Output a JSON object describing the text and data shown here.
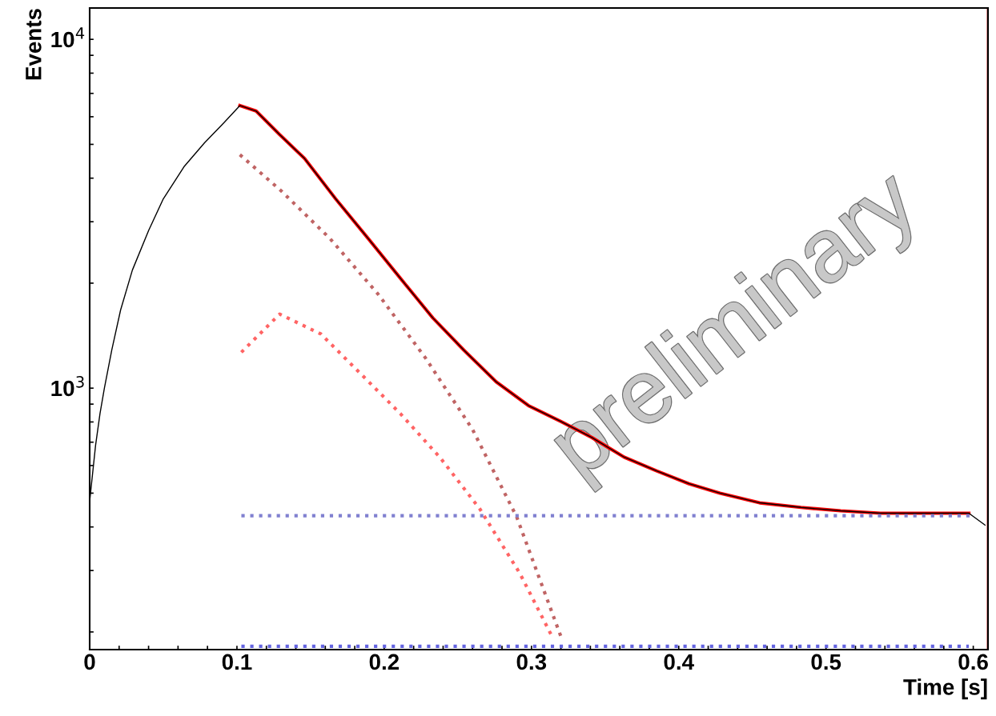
{
  "chart_data": {
    "type": "line",
    "xlabel": "Time [s]",
    "ylabel": "Events",
    "log": "y",
    "xlim": [
      0,
      0.61
    ],
    "ylim": [
      178,
      12300
    ],
    "xticks": [
      0,
      {
        "value": 0.02,
        "label": null
      },
      {
        "value": 0.04,
        "label": null
      },
      {
        "value": 0.06,
        "label": null
      },
      {
        "value": 0.08,
        "label": null
      },
      0.1,
      {
        "value": 0.12,
        "label": null
      },
      {
        "value": 0.14,
        "label": null
      },
      {
        "value": 0.16,
        "label": null
      },
      {
        "value": 0.18,
        "label": null
      },
      0.2,
      {
        "value": 0.22,
        "label": null
      },
      {
        "value": 0.24,
        "label": null
      },
      {
        "value": 0.26,
        "label": null
      },
      {
        "value": 0.28,
        "label": null
      },
      0.3,
      {
        "value": 0.32,
        "label": null
      },
      {
        "value": 0.34,
        "label": null
      },
      {
        "value": 0.36,
        "label": null
      },
      {
        "value": 0.38,
        "label": null
      },
      0.4,
      {
        "value": 0.42,
        "label": null
      },
      {
        "value": 0.44,
        "label": null
      },
      {
        "value": 0.46,
        "label": null
      },
      {
        "value": 0.48,
        "label": null
      },
      0.5,
      {
        "value": 0.52,
        "label": null
      },
      {
        "value": 0.54,
        "label": null
      },
      {
        "value": 0.56,
        "label": null
      },
      {
        "value": 0.58,
        "label": null
      },
      0.6
    ],
    "yticks": [
      {
        "value": 200,
        "label": null
      },
      {
        "value": 300,
        "label": null
      },
      {
        "value": 400,
        "label": null
      },
      {
        "value": 500,
        "label": null
      },
      {
        "value": 600,
        "label": null
      },
      {
        "value": 700,
        "label": null
      },
      {
        "value": 800,
        "label": null
      },
      {
        "value": 900,
        "label": null
      },
      {
        "value": 1000,
        "label": "10$^{3}$"
      },
      {
        "value": 2000,
        "label": null
      },
      {
        "value": 3000,
        "label": null
      },
      {
        "value": 4000,
        "label": null
      },
      {
        "value": 5000,
        "label": null
      },
      {
        "value": 6000,
        "label": null
      },
      {
        "value": 7000,
        "label": null
      },
      {
        "value": 8000,
        "label": null
      },
      {
        "value": 9000,
        "label": null
      },
      {
        "value": 10000,
        "label": "10$^{4}$"
      }
    ],
    "grid": false,
    "legend": false,
    "series": [
      {
        "color": "#000000",
        "line_style": "solid",
        "x": [
          0,
          0.004,
          0.007,
          0.01,
          0.015,
          0.021,
          0.029,
          0.04,
          0.05,
          0.064,
          0.078,
          0.091,
          0.102,
          0.113,
          0.129,
          0.146,
          0.167,
          0.189,
          0.211,
          0.233,
          0.254,
          0.276,
          0.298,
          0.32,
          0.341,
          0.363,
          0.385,
          0.407,
          0.428,
          0.455,
          0.483,
          0.51,
          0.537,
          0.564,
          0.597,
          0.608
        ],
        "values": [
          474,
          685,
          845,
          1000,
          1286,
          1675,
          2180,
          2830,
          3490,
          4310,
          5050,
          5760,
          6460,
          6230,
          5330,
          4550,
          3490,
          2690,
          2065,
          1590,
          1286,
          1043,
          891,
          802,
          722,
          634,
          579,
          532,
          500,
          469,
          455,
          445,
          438,
          438,
          438,
          405
        ]
      },
      {
        "color": "#ff0000",
        "line_style": "solid",
        "x": [
          0.102,
          0.113,
          0.129,
          0.146,
          0.167,
          0.189,
          0.211,
          0.233,
          0.254,
          0.276,
          0.298,
          0.32,
          0.341,
          0.363,
          0.385,
          0.407,
          0.428,
          0.455,
          0.483,
          0.51,
          0.537,
          0.564,
          0.597
        ],
        "values": [
          6460,
          6230,
          5330,
          4550,
          3490,
          2690,
          2065,
          1590,
          1286,
          1043,
          891,
          802,
          722,
          634,
          579,
          532,
          500,
          469,
          455,
          445,
          438,
          438,
          438
        ]
      },
      {
        "color": "#c06464",
        "line_style": "dotted",
        "x": [
          0.102,
          0.13,
          0.163,
          0.196,
          0.228,
          0.26,
          0.29,
          0.32
        ],
        "values": [
          4670,
          3680,
          2690,
          1857,
          1221,
          761,
          427,
          194
        ]
      },
      {
        "color": "#ff6464",
        "line_style": "dotted",
        "x": [
          0.103,
          0.129,
          0.157,
          0.184,
          0.211,
          0.238,
          0.265,
          0.292,
          0.314
        ],
        "values": [
          1267,
          1630,
          1430,
          1100,
          845,
          632,
          450,
          295,
          194
        ]
      },
      {
        "color": "#8080d0",
        "line_style": "dotted",
        "x": [
          0.103,
          0.6
        ],
        "values": [
          431,
          431
        ]
      },
      {
        "color": "#6464e0",
        "line_style": "dotted",
        "x": [
          0.103,
          0.597
        ],
        "values": [
          182,
          182
        ]
      }
    ],
    "ref_lines": [
      {
        "axis": "x",
        "value": 0.61,
        "color": "#cc0000",
        "line_style": "solid"
      }
    ],
    "annotations": [
      "preliminary"
    ]
  }
}
